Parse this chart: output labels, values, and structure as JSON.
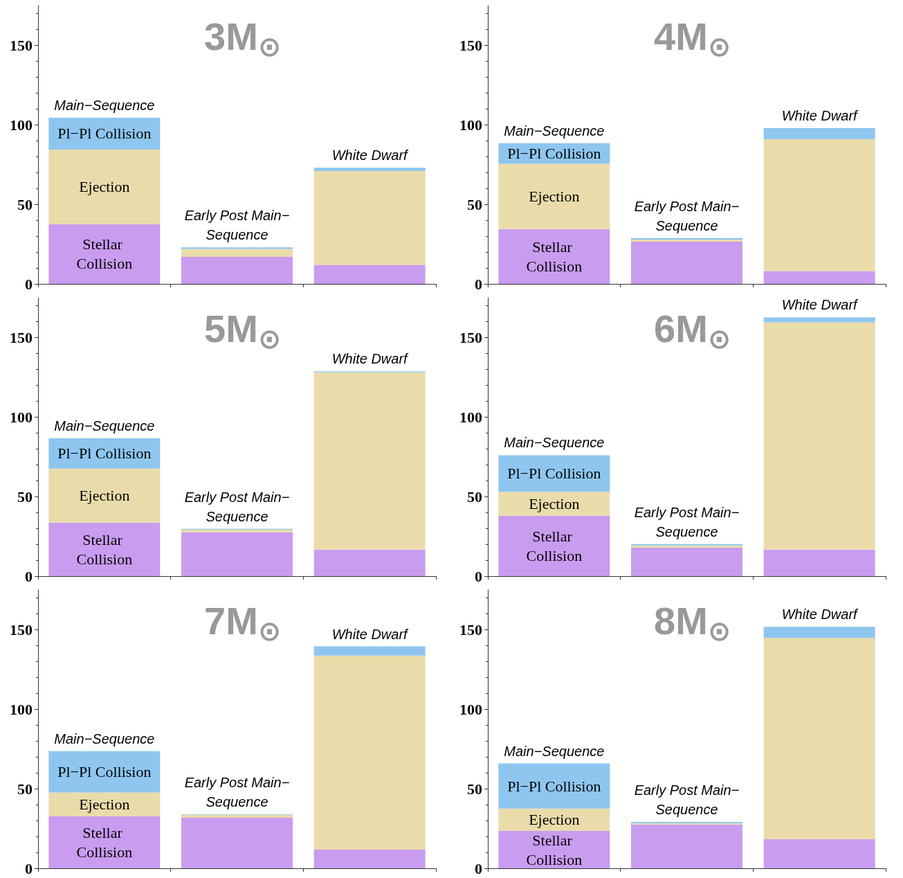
{
  "chart_data": [
    {
      "type": "bar",
      "title": "3M$_{⊙}$",
      "categories": [
        "Main−Sequence",
        "Early Post Main−Sequence",
        "White Dwarf"
      ],
      "stacked": true,
      "ylim": [
        0,
        175
      ],
      "yticks": [
        0,
        50,
        100,
        150
      ],
      "tick_labels": "y",
      "series": [
        {
          "name": "Stellar Collision",
          "color": "#c99cf0",
          "values": [
            37.5,
            17,
            12
          ]
        },
        {
          "name": "Ejection",
          "color": "#eadcaa",
          "values": [
            47,
            5,
            59
          ]
        },
        {
          "name": "Pl−Pl Collision",
          "color": "#8ec6f0",
          "values": [
            20,
            1,
            2
          ]
        }
      ]
    },
    {
      "type": "bar",
      "title": "4M$_{⊙}$",
      "categories": [
        "Main−Sequence",
        "Early Post Main−Sequence",
        "White Dwarf"
      ],
      "stacked": true,
      "ylim": [
        0,
        175
      ],
      "yticks": [
        0,
        50,
        100,
        150
      ],
      "tick_labels": "y",
      "series": [
        {
          "name": "Stellar Collision",
          "color": "#c99cf0",
          "values": [
            34.5,
            26.6,
            8
          ]
        },
        {
          "name": "Ejection",
          "color": "#eadcaa",
          "values": [
            41,
            1.3,
            83
          ]
        },
        {
          "name": "Pl−Pl Collision",
          "color": "#8ec6f0",
          "values": [
            13,
            0.9,
            7
          ]
        }
      ]
    },
    {
      "type": "bar",
      "title": "5M$_{⊙}$",
      "categories": [
        "Main−Sequence",
        "Early Post Main−Sequence",
        "White Dwarf"
      ],
      "stacked": true,
      "ylim": [
        0,
        175
      ],
      "yticks": [
        0,
        50,
        100,
        150
      ],
      "tick_labels": "y",
      "series": [
        {
          "name": "Stellar Collision",
          "color": "#c99cf0",
          "values": [
            33.6,
            27.5,
            16.6
          ]
        },
        {
          "name": "Ejection",
          "color": "#eadcaa",
          "values": [
            34,
            1.7,
            111.6
          ]
        },
        {
          "name": "Pl−Pl Collision",
          "color": "#8ec6f0",
          "values": [
            19,
            0.5,
            0.5
          ]
        }
      ]
    },
    {
      "type": "bar",
      "title": "6M$_{⊙}$",
      "categories": [
        "Main−Sequence",
        "Early Post Main−Sequence",
        "White Dwarf"
      ],
      "stacked": true,
      "ylim": [
        0,
        175
      ],
      "yticks": [
        0,
        50,
        100,
        150
      ],
      "tick_labels": "y",
      "series": [
        {
          "name": "Stellar Collision",
          "color": "#c99cf0",
          "values": [
            38,
            18,
            16.6
          ]
        },
        {
          "name": "Ejection",
          "color": "#eadcaa",
          "values": [
            15,
            1.3,
            143
          ]
        },
        {
          "name": "Pl−Pl Collision",
          "color": "#8ec6f0",
          "values": [
            23,
            0.8,
            3
          ]
        }
      ]
    },
    {
      "type": "bar",
      "title": "7M$_{⊙}$",
      "categories": [
        "Main−Sequence",
        "Early Post Main−Sequence",
        "White Dwarf"
      ],
      "stacked": true,
      "ylim": [
        0,
        175
      ],
      "yticks": [
        0,
        50,
        100,
        150
      ],
      "tick_labels": "y",
      "series": [
        {
          "name": "Stellar Collision",
          "color": "#c99cf0",
          "values": [
            32.7,
            31.8,
            11.8
          ]
        },
        {
          "name": "Ejection",
          "color": "#eadcaa",
          "values": [
            15,
            1.8,
            122
          ]
        },
        {
          "name": "Pl−Pl Collision",
          "color": "#8ec6f0",
          "values": [
            26,
            0.4,
            5.7
          ]
        }
      ]
    },
    {
      "type": "bar",
      "title": "8M$_{⊙}$",
      "categories": [
        "Main−Sequence",
        "Early Post Main−Sequence",
        "White Dwarf"
      ],
      "stacked": true,
      "ylim": [
        0,
        175
      ],
      "yticks": [
        0,
        50,
        100,
        150
      ],
      "tick_labels": "y",
      "series": [
        {
          "name": "Stellar Collision",
          "color": "#c99cf0",
          "values": [
            23.5,
            27.5,
            18.3
          ]
        },
        {
          "name": "Ejection",
          "color": "#eadcaa",
          "values": [
            14,
            0.8,
            126.5
          ]
        },
        {
          "name": "Pl−Pl Collision",
          "color": "#8ec6f0",
          "values": [
            28.4,
            0.9,
            7
          ]
        }
      ]
    }
  ]
}
